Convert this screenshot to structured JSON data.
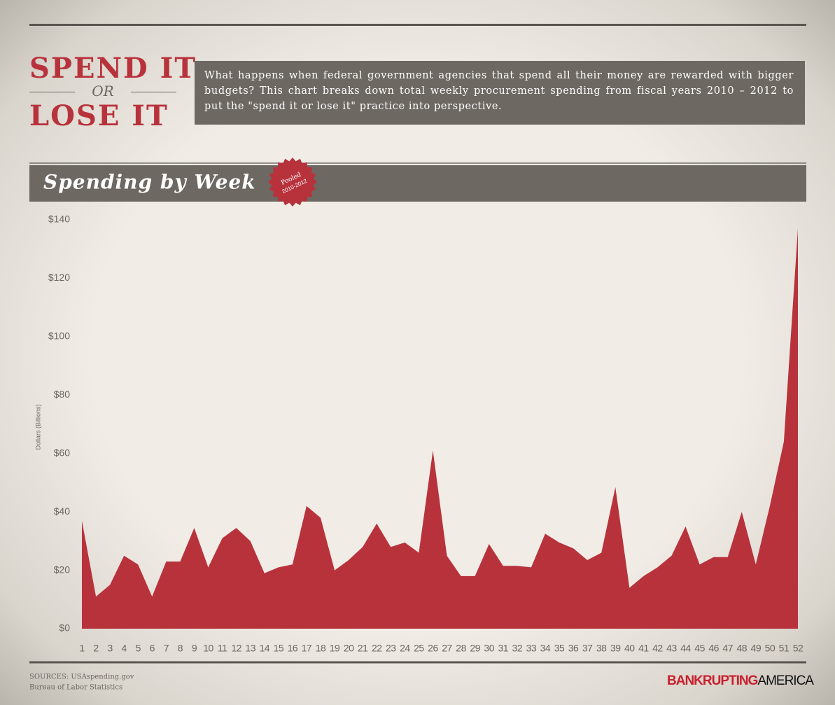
{
  "header": {
    "title_line1": "SPEND IT",
    "title_or": "OR",
    "title_line2": "LOSE IT",
    "description": "What happens when federal government agencies that spend all their money are rewarded with bigger budgets?  This chart breaks down total weekly procurement spending from fiscal years 2010 – 2012 to put the \"spend it or lose it\" practice into perspective."
  },
  "chart_data": {
    "type": "area",
    "title": "Spending by Week",
    "badge_line1": "Pooled",
    "badge_line2": "2010-2012",
    "y_label": "Dollars (Billions)",
    "color": "#b8323c",
    "categories": [
      "1",
      "2",
      "3",
      "4",
      "5",
      "6",
      "7",
      "8",
      "9",
      "10",
      "11",
      "12",
      "13",
      "14",
      "15",
      "16",
      "17",
      "18",
      "19",
      "20",
      "21",
      "22",
      "23",
      "24",
      "25",
      "26",
      "27",
      "28",
      "29",
      "30",
      "31",
      "32",
      "33",
      "34",
      "35",
      "36",
      "37",
      "38",
      "39",
      "40",
      "41",
      "42",
      "43",
      "44",
      "45",
      "46",
      "47",
      "48",
      "49",
      "50",
      "51",
      "52"
    ],
    "values": [
      37,
      11,
      15,
      25,
      22,
      11,
      23,
      23,
      34.5,
      21,
      31,
      34.5,
      30,
      19,
      21,
      22,
      42,
      38,
      20,
      23.5,
      28,
      36,
      28,
      29.5,
      26,
      61,
      25,
      18,
      18,
      29,
      21.5,
      21.5,
      21,
      32.5,
      29.5,
      27.5,
      23.5,
      26,
      48.5,
      14,
      18,
      21,
      25,
      35,
      22,
      24.5,
      24.5,
      40,
      22,
      42,
      64,
      137
    ],
    "ylim": [
      0,
      140
    ],
    "yticks": [
      {
        "value": 0,
        "label": "$0"
      },
      {
        "value": 20,
        "label": "$20"
      },
      {
        "value": 40,
        "label": "$40"
      },
      {
        "value": 60,
        "label": "$60"
      },
      {
        "value": 80,
        "label": "$80"
      },
      {
        "value": 100,
        "label": "$100"
      },
      {
        "value": 120,
        "label": "$120"
      },
      {
        "value": 140,
        "label": "$140"
      }
    ]
  },
  "footer": {
    "sources_line1": "SOURCES: USAspending.gov",
    "sources_line2": "Bureau of Labor Statistics",
    "logo_part1": "BANKRUPTING",
    "logo_part2": "AMERICA"
  }
}
